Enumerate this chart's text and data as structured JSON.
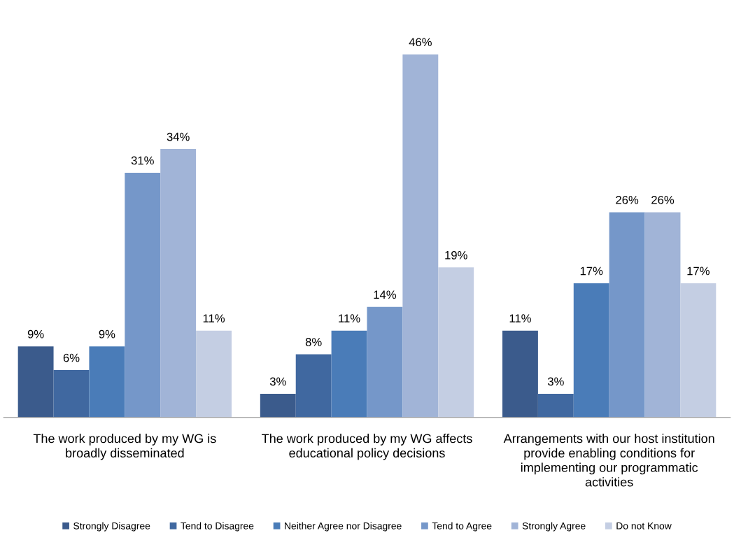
{
  "chart_data": {
    "type": "bar",
    "categories": [
      "The work produced by my WG is broadly disseminated",
      "The work produced by my WG affects educational policy decisions",
      "Arrangements with our host institution provide enabling conditions for implementing our programmatic activities"
    ],
    "series": [
      {
        "name": "Strongly Disagree",
        "color": "#3b5b8c",
        "values": [
          9,
          3,
          11
        ],
        "value_labels": [
          "9%",
          "3%",
          "11%"
        ]
      },
      {
        "name": "Tend to Disagree",
        "color": "#4068a0",
        "values": [
          6,
          8,
          3
        ],
        "value_labels": [
          "6%",
          "8%",
          "3%"
        ]
      },
      {
        "name": "Neither Agree nor Disagree",
        "color": "#4a7cb8",
        "values": [
          9,
          11,
          17
        ],
        "value_labels": [
          "9%",
          "11%",
          "17%"
        ]
      },
      {
        "name": "Tend to Agree",
        "color": "#7597c9",
        "values": [
          31,
          14,
          26
        ],
        "value_labels": [
          "31%",
          "14%",
          "26%"
        ]
      },
      {
        "name": "Strongly Agree",
        "color": "#a1b4d7",
        "values": [
          34,
          46,
          26
        ],
        "value_labels": [
          "34%",
          "46%",
          "26%"
        ]
      },
      {
        "name": "Do not Know",
        "color": "#c4cee3",
        "values": [
          11,
          19,
          17
        ],
        "value_labels": [
          "11%",
          "19%",
          "17%"
        ]
      }
    ],
    "legend": "bottom"
  }
}
